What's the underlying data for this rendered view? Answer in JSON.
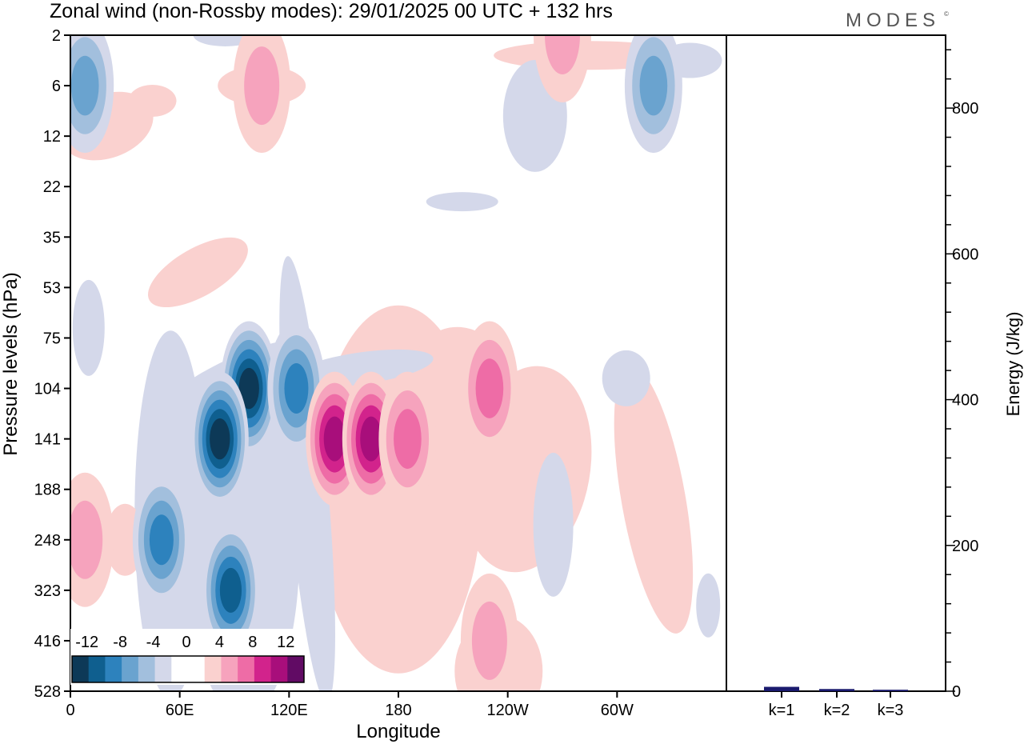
{
  "title": "Zonal wind (non-Rossby modes):  29/01/2025  00 UTC  + 132 hrs",
  "logo": "MODES",
  "colors": {
    "neg": [
      "#0d3957",
      "#0f5f8f",
      "#2d82bd",
      "#6aa3cf",
      "#a2bfdd",
      "#d4d8ea"
    ],
    "pos": [
      "#fad1cf",
      "#f6a3bd",
      "#ee6ca6",
      "#d2238c",
      "#a80e7b",
      "#610b64"
    ],
    "bar": "#1a1a6e"
  },
  "chart_data": [
    {
      "type": "heatmap",
      "title": "Zonal wind (non-Rossby modes):  29/01/2025  00 UTC  + 132 hrs",
      "xlabel": "Longitude",
      "ylabel": "Pressure levels (hPa)",
      "x_ticks": [
        "0",
        "60E",
        "120E",
        "180",
        "120W",
        "60W"
      ],
      "x_tick_values": [
        0,
        60,
        120,
        180,
        240,
        300
      ],
      "xlim": [
        0,
        360
      ],
      "y_ticks": [
        "2",
        "6",
        "12",
        "22",
        "35",
        "53",
        "75",
        "104",
        "141",
        "188",
        "248",
        "323",
        "416",
        "528"
      ],
      "colorbar_labels": [
        "-12",
        "-8",
        "-4",
        "0",
        "4",
        "8",
        "12"
      ],
      "colorbar_levels": [
        -12,
        -10,
        -8,
        -6,
        -4,
        -2,
        2,
        4,
        6,
        8,
        10,
        12
      ],
      "features": [
        {
          "lon": 98,
          "level": "104",
          "value": -13
        },
        {
          "lon": 82,
          "level": "141",
          "value": -12
        },
        {
          "lon": 124,
          "level": "104",
          "value": -9
        },
        {
          "lon": 50,
          "level": "248",
          "value": -8
        },
        {
          "lon": 88,
          "level": "323",
          "value": -10
        },
        {
          "lon": 8,
          "level": "6",
          "value": -6
        },
        {
          "lon": 320,
          "level": "6",
          "value": -6
        },
        {
          "lon": 145,
          "level": "141",
          "value": 10
        },
        {
          "lon": 165,
          "level": "141",
          "value": 10
        },
        {
          "lon": 185,
          "level": "141",
          "value": 7
        },
        {
          "lon": 230,
          "level": "104",
          "value": 7
        },
        {
          "lon": 230,
          "level": "416",
          "value": 5
        },
        {
          "lon": 8,
          "level": "248",
          "value": 5
        },
        {
          "lon": 270,
          "level": "2",
          "value": 5
        },
        {
          "lon": 105,
          "level": "6",
          "value": 4
        }
      ]
    },
    {
      "type": "bar",
      "ylabel": "Energy (J/kg)",
      "categories": [
        "k=1",
        "k=2",
        "k=3"
      ],
      "values": [
        6,
        3,
        2
      ],
      "ylim": [
        0,
        900
      ],
      "y_ticks": [
        0,
        200,
        400,
        600,
        800
      ]
    }
  ]
}
